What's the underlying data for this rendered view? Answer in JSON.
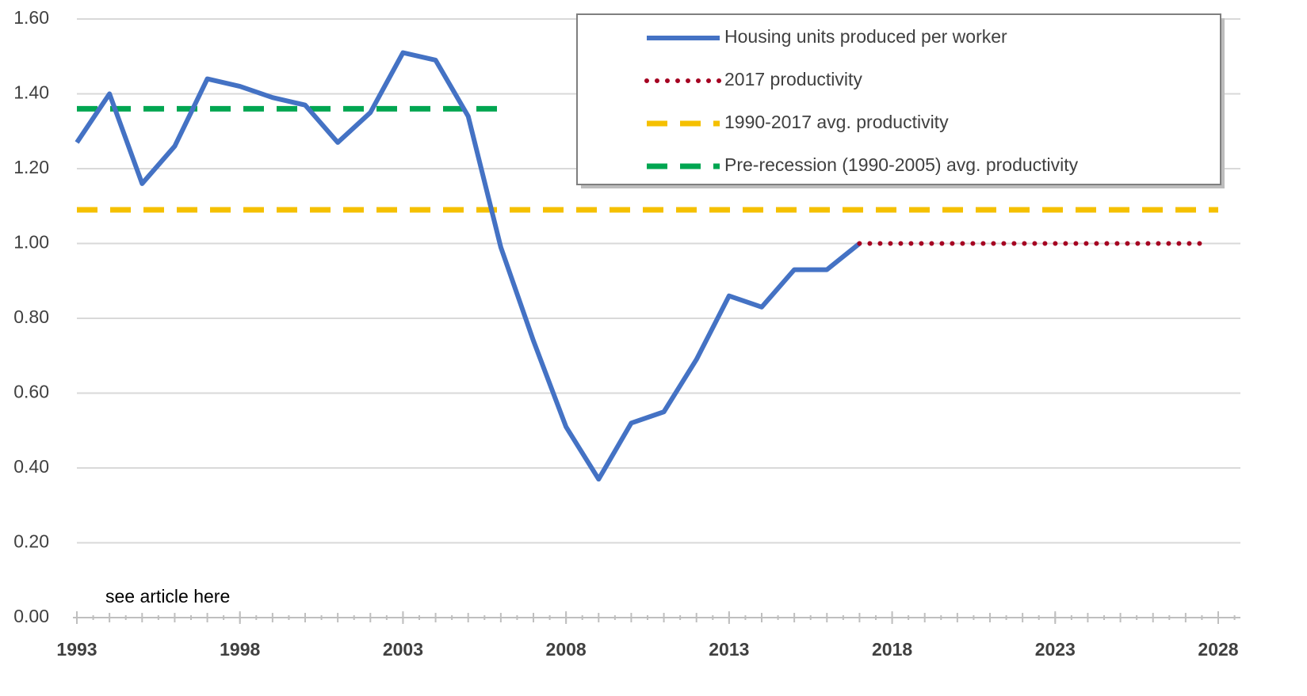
{
  "chart_data": {
    "type": "line",
    "annotation": "see article here",
    "xlim": [
      1993,
      2028
    ],
    "xticks": [
      1993,
      1998,
      2003,
      2008,
      2013,
      2018,
      2023,
      2028
    ],
    "ylim": [
      0,
      1.6
    ],
    "yticks": [
      {
        "value": 0,
        "label": "0.00"
      },
      {
        "value": 0.2,
        "label": "0.20"
      },
      {
        "value": 0.4,
        "label": "0.40"
      },
      {
        "value": 0.6,
        "label": "0.60"
      },
      {
        "value": 0.8,
        "label": "0.80"
      },
      {
        "value": 1,
        "label": "1.00"
      },
      {
        "value": 1.2,
        "label": "1.20"
      },
      {
        "value": 1.4,
        "label": "1.40"
      },
      {
        "value": 1.6,
        "label": "1.60"
      }
    ],
    "grid": true,
    "legend": "top-right",
    "series": [
      {
        "name": "Housing units produced per worker",
        "color": "#4472c4",
        "style": "solid",
        "x": [
          1993,
          1994,
          1995,
          1996,
          1997,
          1998,
          1999,
          2000,
          2001,
          2002,
          2003,
          2004,
          2005,
          2006,
          2007,
          2008,
          2009,
          2010,
          2011,
          2012,
          2013,
          2014,
          2015,
          2016,
          2017
        ],
        "values": [
          1.27,
          1.4,
          1.16,
          1.26,
          1.44,
          1.42,
          1.39,
          1.37,
          1.27,
          1.35,
          1.51,
          1.49,
          1.34,
          0.99,
          0.74,
          0.51,
          0.37,
          0.52,
          0.55,
          0.69,
          0.86,
          0.83,
          0.93,
          0.93,
          1.0
        ]
      },
      {
        "name": "2017 productivity",
        "color": "#a50021",
        "style": "dotted",
        "x": [
          2017,
          2027.6
        ],
        "values": [
          1.0,
          1.0
        ]
      },
      {
        "name": "1990-2017 avg. productivity",
        "color": "#f5c000",
        "style": "dashed",
        "x": [
          1993,
          2028
        ],
        "values": [
          1.09,
          1.09
        ]
      },
      {
        "name": "Pre-recession (1990-2005) avg. productivity",
        "color": "#00a651",
        "style": "dashed",
        "x": [
          1993,
          2006
        ],
        "values": [
          1.36,
          1.36
        ]
      }
    ]
  }
}
